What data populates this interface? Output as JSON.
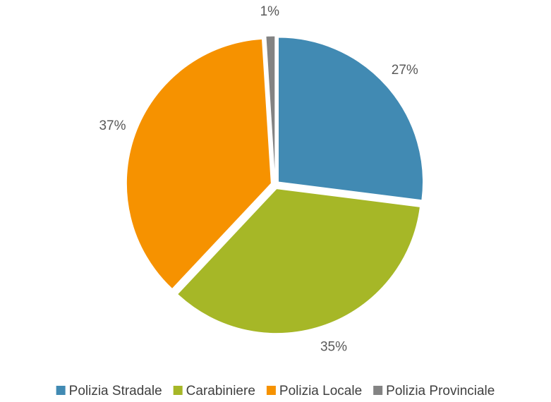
{
  "chart_data": {
    "type": "pie",
    "categories": [
      "Polizia Stradale",
      "Carabiniere",
      "Polizia Locale",
      "Polizia Provinciale"
    ],
    "values": [
      27,
      35,
      37,
      1
    ],
    "value_labels": [
      "27%",
      "35%",
      "37%",
      "1%"
    ],
    "colors": [
      "#418ab3",
      "#a6b727",
      "#f69200",
      "#838383"
    ],
    "legend": "bottom"
  }
}
